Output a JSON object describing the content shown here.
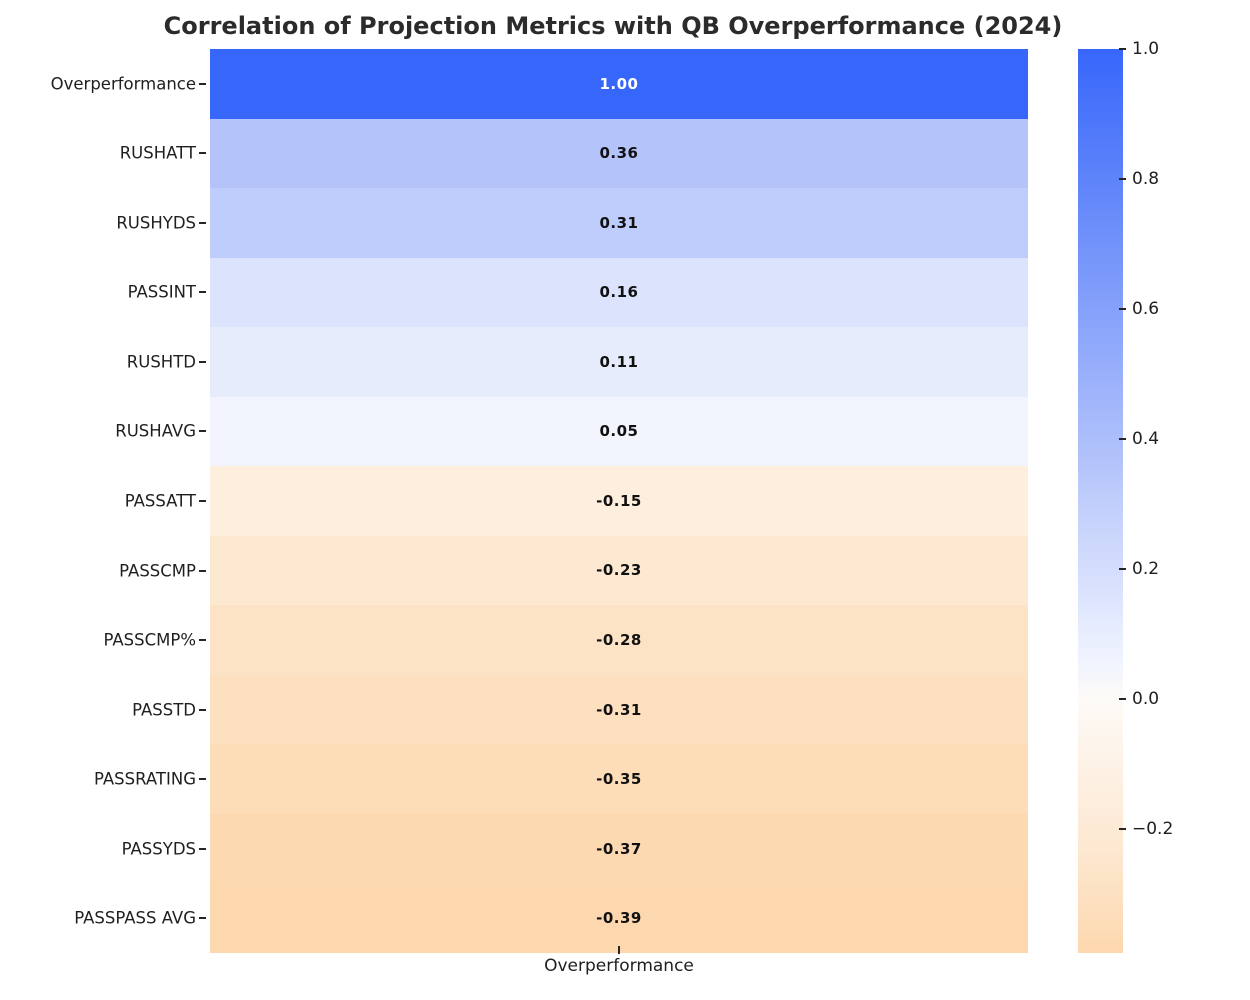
{
  "chart_data": {
    "type": "heatmap",
    "title": "Correlation of Projection Metrics with QB Overperformance (2024)",
    "xlabel": "Overperformance",
    "x_categories": [
      "Overperformance"
    ],
    "grid": false,
    "legend_position": "colorbar-right",
    "rows": [
      {
        "label": "Overperformance",
        "value_text": "1.00",
        "value": 1.0,
        "color": "#3766fa",
        "text_color": "#ffffff"
      },
      {
        "label": "RUSHATT",
        "value_text": "0.36",
        "value": 0.36,
        "color": "#b4c4fb",
        "text_color": "#111111"
      },
      {
        "label": "RUSHYDS",
        "value_text": "0.31",
        "value": 0.31,
        "color": "#bfcdfc",
        "text_color": "#111111"
      },
      {
        "label": "PASSINT",
        "value_text": "0.16",
        "value": 0.16,
        "color": "#dce3fd",
        "text_color": "#111111"
      },
      {
        "label": "RUSHTD",
        "value_text": "0.11",
        "value": 0.11,
        "color": "#e7ecfd",
        "text_color": "#111111"
      },
      {
        "label": "RUSHAVG",
        "value_text": "0.05",
        "value": 0.05,
        "color": "#f2f5fe",
        "text_color": "#111111"
      },
      {
        "label": "PASSATT",
        "value_text": "-0.15",
        "value": -0.15,
        "color": "#fdeede",
        "text_color": "#111111"
      },
      {
        "label": "PASSCMP",
        "value_text": "-0.23",
        "value": -0.23,
        "color": "#fde8d1",
        "text_color": "#111111"
      },
      {
        "label": "PASSCMP%",
        "value_text": "-0.28",
        "value": -0.28,
        "color": "#fce3c6",
        "text_color": "#111111"
      },
      {
        "label": "PASSTD",
        "value_text": "-0.31",
        "value": -0.31,
        "color": "#fde0c0",
        "text_color": "#111111"
      },
      {
        "label": "PASSRATING",
        "value_text": "-0.35",
        "value": -0.35,
        "color": "#fddcb8",
        "text_color": "#111111"
      },
      {
        "label": "PASSYDS",
        "value_text": "-0.37",
        "value": -0.37,
        "color": "#fdd9b2",
        "text_color": "#111111"
      },
      {
        "label": "PASSPASS AVG",
        "value_text": "-0.39",
        "value": -0.39,
        "color": "#fdd7ad",
        "text_color": "#111111"
      }
    ],
    "colorbar": {
      "vmin": -0.39,
      "vmax": 1.0,
      "ticks": [
        {
          "label": "1.0",
          "value": 1.0
        },
        {
          "label": "0.8",
          "value": 0.8
        },
        {
          "label": "0.6",
          "value": 0.6
        },
        {
          "label": "0.4",
          "value": 0.4
        },
        {
          "label": "0.2",
          "value": 0.2
        },
        {
          "label": "0.0",
          "value": 0.0
        },
        {
          "label": "−0.2",
          "value": -0.2
        }
      ],
      "stops": [
        {
          "offset": 0.0,
          "color": "#3766fa"
        },
        {
          "offset": 0.4604,
          "color": "#b4c4fb"
        },
        {
          "offset": 0.4964,
          "color": "#bfcdfc"
        },
        {
          "offset": 0.6043,
          "color": "#dce3fd"
        },
        {
          "offset": 0.6403,
          "color": "#e7ecfd"
        },
        {
          "offset": 0.6835,
          "color": "#f2f5fe"
        },
        {
          "offset": 0.7194,
          "color": "#fdfaf7"
        },
        {
          "offset": 0.8273,
          "color": "#fdeede"
        },
        {
          "offset": 0.8849,
          "color": "#fde8d1"
        },
        {
          "offset": 0.9209,
          "color": "#fce3c6"
        },
        {
          "offset": 0.9424,
          "color": "#fde0c0"
        },
        {
          "offset": 0.9712,
          "color": "#fddcb8"
        },
        {
          "offset": 1.0,
          "color": "#fdd7ad"
        }
      ]
    }
  },
  "colors": {
    "background": "#ffffff",
    "title_text": "#2b2b2b",
    "axis_text": "#1f1f1f",
    "tick_mark": "#262626"
  }
}
